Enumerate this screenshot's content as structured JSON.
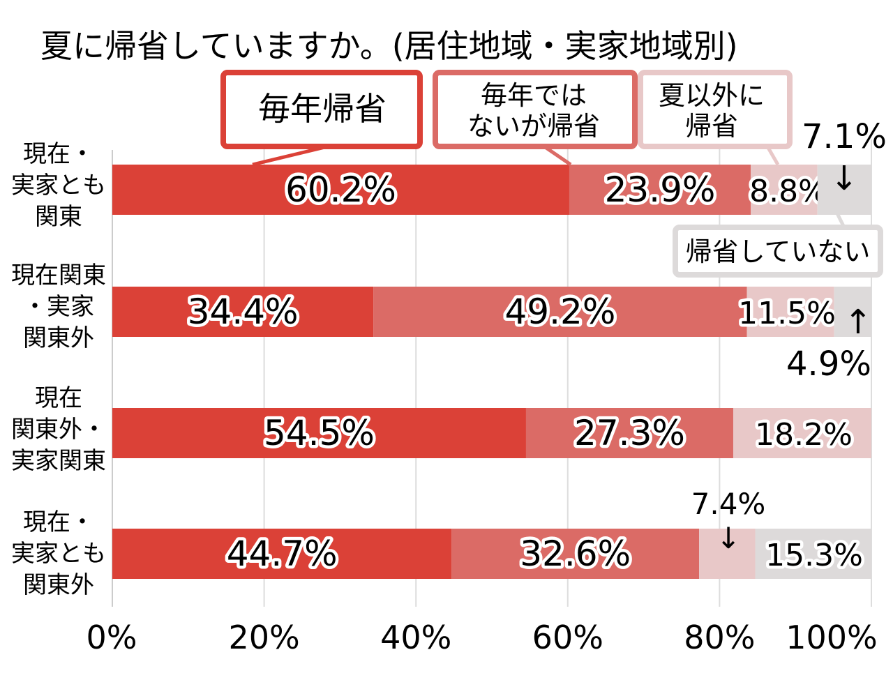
{
  "chart_data": {
    "type": "bar",
    "orientation": "horizontal",
    "stacked": true,
    "title": "夏に帰省していますか。(居住地域・実家地域別)",
    "categories": [
      "現在・\n実家とも\n関東",
      "現在関東\n・実家\n関東外",
      "現在\n関東外・\n実家関東",
      "現在・\n実家とも\n関東外"
    ],
    "series": [
      {
        "name": "毎年帰省",
        "color": "#db4137",
        "values": [
          60.2,
          34.4,
          54.5,
          44.7
        ]
      },
      {
        "name": "毎年ではないが帰省",
        "color": "#db6b66",
        "values": [
          23.9,
          49.2,
          27.3,
          32.6
        ]
      },
      {
        "name": "夏以外に帰省",
        "color": "#e8c8c8",
        "values": [
          8.8,
          11.5,
          18.2,
          7.4
        ]
      },
      {
        "name": "帰省していない",
        "color": "#dddada",
        "values": [
          7.1,
          4.9,
          0,
          15.3
        ]
      }
    ],
    "value_labels": [
      [
        "60.2%",
        "23.9%",
        "8.8%",
        "7.1%"
      ],
      [
        "34.4%",
        "49.2%",
        "11.5%",
        "4.9%"
      ],
      [
        "54.5%",
        "27.3%",
        "18.2%",
        ""
      ],
      [
        "44.7%",
        "32.6%",
        "7.4%",
        "15.3%"
      ]
    ],
    "legend_labels": [
      "毎年帰省",
      "毎年では\nないが帰省",
      "夏以外に\n帰省",
      "帰省していない"
    ],
    "xlim": [
      0,
      100
    ],
    "xticks": [
      0,
      20,
      40,
      60,
      80,
      100
    ],
    "xtick_labels": [
      "0%",
      "20%",
      "40%",
      "60%",
      "80%",
      "100%"
    ],
    "grid": true,
    "legend_position": "top",
    "arrows": [
      "↓",
      "↑",
      "↓"
    ]
  }
}
